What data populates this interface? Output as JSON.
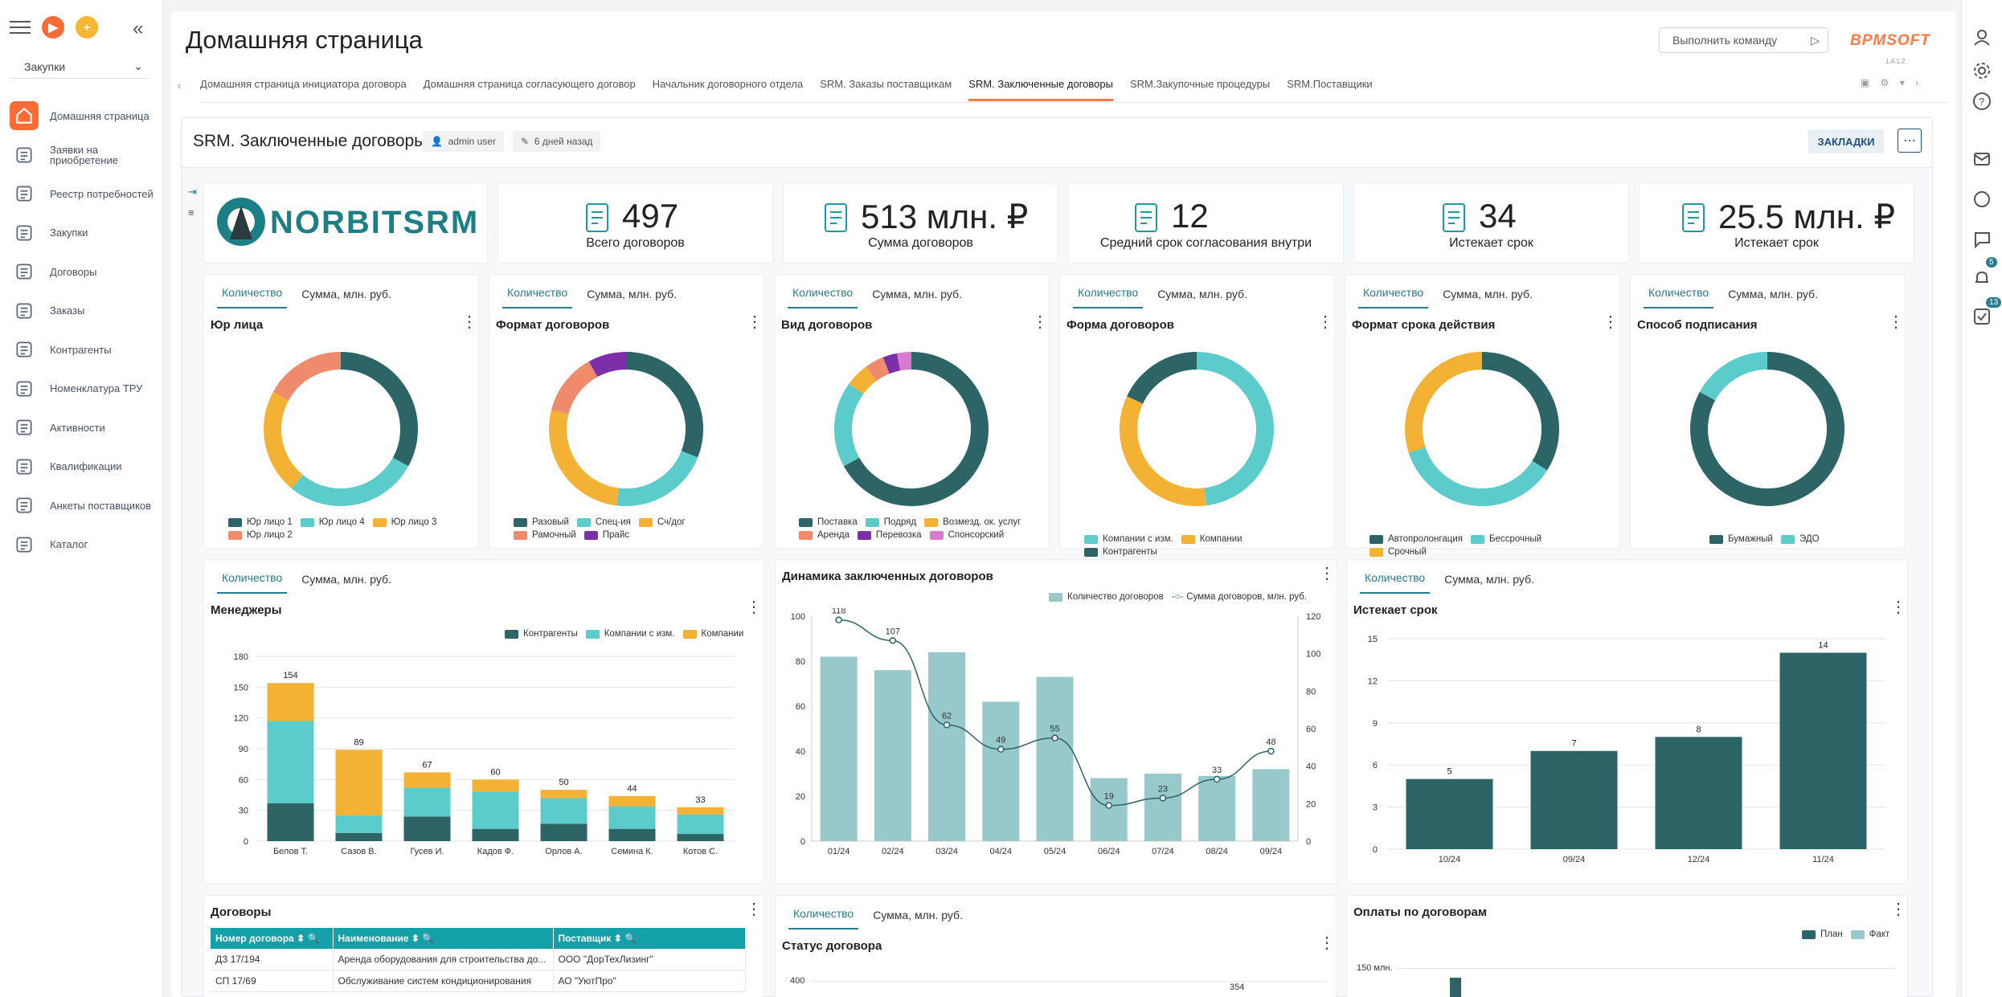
{
  "app": {
    "workspace": "Закупки",
    "command_placeholder": "Выполнить команду",
    "brand": "BPMSOFT",
    "version": "1.4.1.2"
  },
  "nav": [
    {
      "label": "Домашняя страница",
      "icon": "home-icon"
    },
    {
      "label": "Заявки на приобретение",
      "icon": "cart-edit-icon"
    },
    {
      "label": "Реестр потребностей",
      "icon": "list-icon"
    },
    {
      "label": "Закупки",
      "icon": "cart-add-icon"
    },
    {
      "label": "Договоры",
      "icon": "contract-icon"
    },
    {
      "label": "Заказы",
      "icon": "cart-icon"
    },
    {
      "label": "Контрагенты",
      "icon": "document-icon"
    },
    {
      "label": "Номенклатура ТРУ",
      "icon": "catalog-icon"
    },
    {
      "label": "Активности",
      "icon": "flag-icon"
    },
    {
      "label": "Квалификации",
      "icon": "qualification-icon"
    },
    {
      "label": "Анкеты поставщиков",
      "icon": "forms-icon"
    },
    {
      "label": "Каталог",
      "icon": "catalog-list-icon"
    }
  ],
  "page": {
    "title": "Домашняя страница"
  },
  "tabs": [
    "Домашняя страница инициатора договора",
    "Домашняя страница согласующего договор",
    "Начальник договорного отдела",
    "SRM. Заказы поставщикам",
    "SRM. Заключенные договоры",
    "SRM.Закупочные процедуры",
    "SRM.Поставщики"
  ],
  "dashboard": {
    "title": "SRM. Заключенные договоры",
    "author": "admin user",
    "modified": "6 дней назад",
    "bookmarks": "ЗАКЛАДКИ",
    "logo_text": "NORBITSRM"
  },
  "kpis": [
    {
      "value": "497",
      "caption": "Всего договоров",
      "icon": "contracts-icon"
    },
    {
      "value": "513 млн. ₽",
      "caption": "Сумма договоров",
      "icon": "calculator-icon"
    },
    {
      "value": "12",
      "caption": "Средний срок согласования внутри",
      "icon": "hourglass-icon"
    },
    {
      "value": "34",
      "caption": "Истекает срок",
      "icon": "expiring-icon"
    },
    {
      "value": "25.5 млн. ₽",
      "caption": "Истекает срок",
      "icon": "money-clock-icon"
    }
  ],
  "tab_labels": {
    "count": "Количество",
    "sum": "Сумма, млн. руб."
  },
  "colors": {
    "dark": "#2d6466",
    "teal": "#5ccbcc",
    "orange": "#f4b234",
    "salmon": "#ef8a6d",
    "purple": "#7c2fa8",
    "pink": "#d97acd",
    "bar_light": "#97c8ca",
    "accent": "#2a7c8f"
  },
  "chart_data": [
    {
      "type": "pie",
      "title": "Юр лица",
      "labels": [
        "Юр лицо 1",
        "Юр лицо 4",
        "Юр лицо 3",
        "Юр лицо 2"
      ],
      "values": [
        33,
        28,
        22,
        17
      ]
    },
    {
      "type": "pie",
      "title": "Формат договоров",
      "labels": [
        "Разовый",
        "Спец-ия",
        "Сч/дог",
        "Рамочный",
        "Прайс"
      ],
      "values": [
        31,
        21,
        27,
        13,
        8
      ]
    },
    {
      "type": "pie",
      "title": "Вид договоров",
      "labels": [
        "Поставка",
        "Подряд",
        "Возмезд. ок. услуг",
        "Аренда",
        "Перевозка",
        "Спонсорский"
      ],
      "values": [
        67,
        18,
        5,
        4,
        3,
        3
      ]
    },
    {
      "type": "pie",
      "title": "Форма договоров",
      "labels": [
        "Компании с изм.",
        "Компании",
        "Контрагенты"
      ],
      "values": [
        48,
        34,
        18
      ]
    },
    {
      "type": "pie",
      "title": "Формат срока действия",
      "labels": [
        "Автопролонгация",
        "Бессрочный",
        "Срочный"
      ],
      "values": [
        34,
        36,
        30
      ]
    },
    {
      "type": "pie",
      "title": "Способ подписания",
      "labels": [
        "Бумажный",
        "ЭДО"
      ],
      "values": [
        83,
        17
      ]
    },
    {
      "type": "bar",
      "stacked": true,
      "title": "Менеджеры",
      "categories": [
        "Белов Т.",
        "Сазов В.",
        "Гусев И.",
        "Кадов Ф.",
        "Орлов А.",
        "Семина К.",
        "Котов С."
      ],
      "series": [
        {
          "name": "Контрагенты",
          "values": [
            37,
            8,
            24,
            12,
            17,
            12,
            7
          ]
        },
        {
          "name": "Компании с изм.",
          "values": [
            80,
            17,
            28,
            36,
            25,
            22,
            19
          ]
        },
        {
          "name": "Компании",
          "values": [
            37,
            64,
            15,
            12,
            8,
            10,
            7
          ]
        }
      ],
      "totals": [
        154,
        89,
        67,
        60,
        50,
        44,
        33
      ],
      "yticks": [
        0,
        30,
        60,
        90,
        120,
        150,
        180
      ]
    },
    {
      "type": "bar+line",
      "title": "Динамика заключенных договоров",
      "categories": [
        "01/24",
        "02/24",
        "03/24",
        "04/24",
        "05/24",
        "06/24",
        "07/24",
        "08/24",
        "09/24"
      ],
      "series": [
        {
          "name": "Количество договоров",
          "values": [
            82,
            76,
            84,
            62,
            73,
            28,
            30,
            29,
            32
          ]
        },
        {
          "name": "Сумма договоров, млн. руб.",
          "values": [
            118,
            107,
            62,
            49,
            55,
            19,
            23,
            33,
            48
          ]
        }
      ],
      "yticks_left": [
        0,
        20,
        40,
        60,
        80,
        100
      ],
      "yticks_right": [
        0,
        20,
        40,
        60,
        80,
        100,
        120
      ]
    },
    {
      "type": "bar",
      "title": "Истекает срок",
      "categories": [
        "10/24",
        "09/24",
        "12/24",
        "11/24"
      ],
      "values": [
        5,
        7,
        8,
        14
      ],
      "yticks": [
        0,
        3,
        6,
        9,
        12,
        15
      ]
    },
    {
      "type": "bar",
      "title": "Статус договора",
      "yticks": [
        400
      ],
      "partial_label": "354"
    },
    {
      "type": "bar",
      "title": "Оплаты по договорам",
      "series": [
        {
          "name": "План"
        },
        {
          "name": "Факт"
        }
      ],
      "ytick": "150 млн."
    }
  ],
  "table": {
    "title": "Договоры",
    "columns": [
      "Номер договора",
      "Наименование",
      "Поставщик"
    ],
    "rows": [
      [
        "ДЗ 17/194",
        "Аренда оборудования для строительства до...",
        "ООО \"ДорТехЛизинг\""
      ],
      [
        "СП 17/69",
        "Обслуживание систем кондиционирования",
        "АО \"УютПро\""
      ]
    ]
  },
  "right_badges": {
    "notifications": "5",
    "tasks": "13"
  }
}
